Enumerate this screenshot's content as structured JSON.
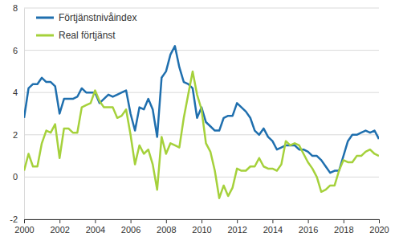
{
  "chart_data": {
    "type": "line",
    "x": [
      2000,
      2000.25,
      2000.5,
      2000.75,
      2001,
      2001.25,
      2001.5,
      2001.75,
      2002,
      2002.25,
      2002.5,
      2002.75,
      2003,
      2003.25,
      2003.5,
      2003.75,
      2004,
      2004.25,
      2004.5,
      2004.75,
      2005,
      2005.25,
      2005.5,
      2005.75,
      2006,
      2006.25,
      2006.5,
      2006.75,
      2007,
      2007.25,
      2007.5,
      2007.75,
      2008,
      2008.25,
      2008.5,
      2008.75,
      2009,
      2009.25,
      2009.5,
      2009.75,
      2010,
      2010.25,
      2010.5,
      2010.75,
      2011,
      2011.25,
      2011.5,
      2011.75,
      2012,
      2012.25,
      2012.5,
      2012.75,
      2013,
      2013.25,
      2013.5,
      2013.75,
      2014,
      2014.25,
      2014.5,
      2014.75,
      2015,
      2015.25,
      2015.5,
      2015.75,
      2016,
      2016.25,
      2016.5,
      2016.75,
      2017,
      2017.25,
      2017.5,
      2017.75,
      2018,
      2018.25,
      2018.5,
      2018.75,
      2019,
      2019.25,
      2019.5,
      2019.75,
      2020
    ],
    "series": [
      {
        "name": "Förtjänstnivåindex",
        "color": "#1f6fae",
        "values": [
          2.8,
          4.2,
          4.4,
          4.4,
          4.7,
          4.5,
          4.5,
          4.3,
          3.0,
          3.7,
          3.7,
          3.7,
          3.8,
          4.2,
          4.0,
          4.0,
          4.0,
          3.5,
          3.7,
          3.9,
          3.8,
          3.9,
          4.0,
          4.1,
          3.0,
          2.2,
          3.3,
          3.2,
          3.7,
          3.2,
          1.9,
          4.7,
          5.0,
          5.8,
          6.2,
          5.2,
          4.5,
          4.4,
          4.2,
          2.8,
          3.3,
          2.6,
          2.4,
          2.2,
          2.2,
          2.8,
          2.9,
          2.9,
          3.5,
          3.3,
          3.1,
          2.8,
          2.2,
          2.0,
          2.3,
          1.9,
          1.7,
          1.3,
          1.4,
          1.5,
          1.5,
          1.5,
          1.3,
          1.3,
          1.2,
          1.0,
          1.0,
          0.8,
          0.5,
          0.2,
          0.3,
          0.3,
          1.0,
          1.7,
          2.0,
          2.0,
          2.1,
          2.2,
          2.1,
          2.2,
          1.8
        ]
      },
      {
        "name": "Real förtjänst",
        "color": "#a5d13b",
        "values": [
          0.3,
          1.1,
          0.5,
          0.5,
          1.6,
          2.2,
          2.1,
          2.5,
          0.9,
          2.3,
          2.3,
          2.1,
          2.1,
          3.3,
          3.4,
          3.5,
          4.1,
          3.6,
          3.3,
          3.3,
          3.3,
          2.8,
          2.9,
          3.2,
          2.0,
          0.6,
          1.5,
          1.1,
          1.3,
          0.6,
          -0.6,
          1.9,
          1.1,
          1.6,
          1.5,
          1.4,
          2.8,
          3.9,
          5.0,
          3.9,
          3.2,
          1.6,
          1.2,
          0.3,
          -1.0,
          -0.4,
          -0.9,
          -0.5,
          0.4,
          0.3,
          0.3,
          0.5,
          0.5,
          0.9,
          0.5,
          0.4,
          0.4,
          0.3,
          0.6,
          1.7,
          1.5,
          1.6,
          1.5,
          1.1,
          0.7,
          0.4,
          0.0,
          -0.7,
          -0.6,
          -0.4,
          -0.4,
          0.3,
          0.8,
          0.7,
          0.7,
          1.0,
          1.0,
          1.2,
          1.3,
          1.1,
          1.0
        ]
      }
    ],
    "xlim": [
      2000,
      2020
    ],
    "xticks": [
      2000,
      2002,
      2004,
      2006,
      2008,
      2010,
      2012,
      2014,
      2016,
      2018,
      2020
    ],
    "ylim": [
      -2,
      8
    ],
    "yticks": [
      -2,
      0,
      2,
      4,
      6,
      8
    ],
    "grid": true,
    "legend": "upper left"
  }
}
